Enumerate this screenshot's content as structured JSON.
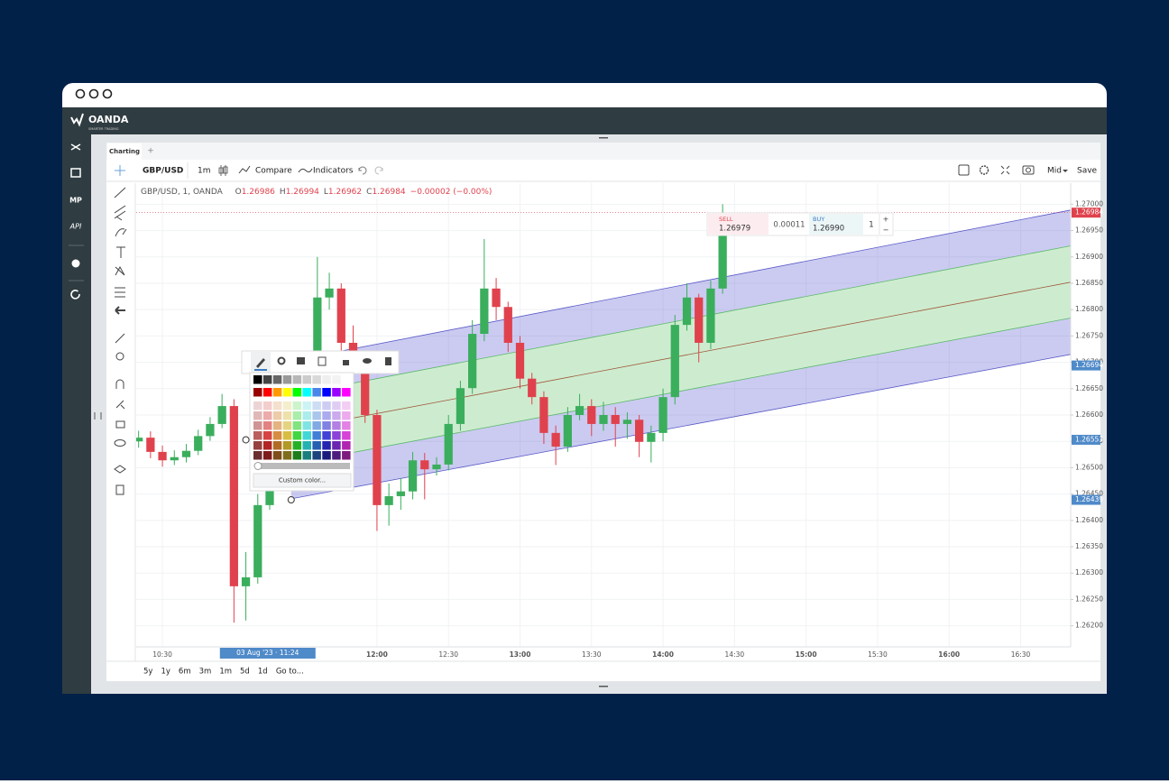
{
  "window": {
    "logo": "OANDA",
    "tagline": "SMARTER TRADING",
    "sidebar": [
      "MP",
      "API"
    ]
  },
  "tabs": [
    "Charting",
    "+"
  ],
  "toolbar": {
    "symbol": "GBP/USD",
    "interval": "1m",
    "compare": "Compare",
    "indicators": "Indicators",
    "price_type": "Mid",
    "save": "Save"
  },
  "legend": {
    "title": "GBP/USD, 1, OANDA",
    "open_label": "O",
    "open": "1.26986",
    "high_label": "H",
    "high": "1.26994",
    "low_label": "L",
    "low": "1.26962",
    "close_label": "C",
    "close": "1.26984",
    "change": "−0.00002 (−0.00%)"
  },
  "trade": {
    "sell_label": "SELL",
    "sell": "1.26979",
    "spread": "0.00011",
    "buy_label": "BUY",
    "buy": "1.26990",
    "quantity": "1",
    "plus": "+",
    "minus": "−"
  },
  "color_picker": {
    "custom": "Custom color..."
  },
  "ranges": [
    "5y",
    "1y",
    "6m",
    "3m",
    "1m",
    "5d",
    "1d",
    "Go to..."
  ],
  "chart_data": {
    "type": "candlestick",
    "x": [
      620,
      625,
      630,
      635,
      640,
      645,
      650,
      655,
      660,
      665,
      670,
      675,
      680,
      685,
      690,
      695,
      700,
      705,
      710,
      715,
      720,
      725,
      730,
      735,
      740,
      745,
      750,
      755,
      760,
      765,
      770,
      775,
      780,
      785,
      790,
      795,
      800,
      805,
      810,
      815,
      820,
      825,
      830,
      835,
      840,
      845,
      850,
      855,
      860,
      865
    ],
    "open": [
      1.2655,
      1.26557,
      1.2653,
      1.26514,
      1.2652,
      1.26532,
      1.2656,
      1.26583,
      1.26617,
      1.26275,
      1.26292,
      1.26429,
      1.26669,
      1.26617,
      1.26566,
      1.26497,
      1.26823,
      1.2684,
      1.26737,
      1.26703,
      1.266,
      1.26429,
      1.26446,
      1.26455,
      1.26514,
      1.26497,
      1.26506,
      1.26583,
      1.26651,
      1.26754,
      1.2684,
      1.26805,
      1.26737,
      1.26669,
      1.26634,
      1.26566,
      1.2654,
      1.266,
      1.26617,
      1.26583,
      1.266,
      1.26583,
      1.26591,
      1.26549,
      1.26566,
      1.26634,
      1.26771,
      1.26823,
      1.26737,
      1.2684
    ],
    "high": [
      1.2657,
      1.26569,
      1.26542,
      1.26533,
      1.26545,
      1.26572,
      1.26596,
      1.2664,
      1.2663,
      1.2634,
      1.2645,
      1.2669,
      1.267,
      1.2663,
      1.2658,
      1.269,
      1.2687,
      1.2685,
      1.2677,
      1.26715,
      1.2661,
      1.2647,
      1.2648,
      1.2653,
      1.26528,
      1.2652,
      1.266,
      1.26665,
      1.2678,
      1.26934,
      1.2686,
      1.26815,
      1.2675,
      1.2668,
      1.26645,
      1.2658,
      1.26615,
      1.2664,
      1.2663,
      1.26625,
      1.26615,
      1.26605,
      1.266,
      1.2658,
      1.2665,
      1.2679,
      1.2685,
      1.2683,
      1.26855,
      1.27
    ],
    "low": [
      1.26538,
      1.26518,
      1.26502,
      1.26505,
      1.2651,
      1.26524,
      1.26551,
      1.26575,
      1.26206,
      1.2621,
      1.2628,
      1.2642,
      1.26605,
      1.2655,
      1.2648,
      1.2649,
      1.268,
      1.2672,
      1.2669,
      1.26585,
      1.2638,
      1.2639,
      1.2642,
      1.2644,
      1.2644,
      1.26485,
      1.26495,
      1.2657,
      1.2664,
      1.2674,
      1.2678,
      1.2672,
      1.2665,
      1.2662,
      1.26545,
      1.26505,
      1.2653,
      1.2659,
      1.2656,
      1.2657,
      1.2654,
      1.26555,
      1.2652,
      1.2651,
      1.2655,
      1.2662,
      1.2676,
      1.267,
      1.26725,
      1.2683
    ],
    "close": [
      1.26557,
      1.2653,
      1.26514,
      1.2652,
      1.26532,
      1.2656,
      1.26583,
      1.26617,
      1.26275,
      1.26292,
      1.26429,
      1.26669,
      1.26617,
      1.26566,
      1.26497,
      1.26823,
      1.2684,
      1.26737,
      1.26703,
      1.266,
      1.26429,
      1.26446,
      1.26455,
      1.26514,
      1.26497,
      1.26506,
      1.26583,
      1.26651,
      1.26754,
      1.2684,
      1.26805,
      1.26737,
      1.26669,
      1.26634,
      1.26566,
      1.2654,
      1.266,
      1.26617,
      1.26583,
      1.266,
      1.26583,
      1.26591,
      1.26549,
      1.26566,
      1.26634,
      1.26771,
      1.26823,
      1.26737,
      1.2684,
      1.26984
    ],
    "up_color": "#3aae5c",
    "down_color": "#e0424d",
    "xlim": [
      619,
      1011
    ],
    "xticks": [
      {
        "value": 630,
        "label": "10:30"
      },
      {
        "value": 720,
        "label": "12:00"
      },
      {
        "value": 750,
        "label": "12:30"
      },
      {
        "value": 780,
        "label": "13:00"
      },
      {
        "value": 810,
        "label": "13:30"
      },
      {
        "value": 840,
        "label": "14:00"
      },
      {
        "value": 870,
        "label": "14:30"
      },
      {
        "value": 900,
        "label": "15:00"
      },
      {
        "value": 930,
        "label": "15:30"
      },
      {
        "value": 960,
        "label": "16:00"
      },
      {
        "value": 990,
        "label": "16:30"
      }
    ],
    "ylim": [
      1.2616,
      1.2704
    ],
    "yticks": [
      {
        "value": 1.27,
        "label": "1.27000"
      },
      {
        "value": 1.2695,
        "label": "1.26950"
      },
      {
        "value": 1.269,
        "label": "1.26900"
      },
      {
        "value": 1.2685,
        "label": "1.26850"
      },
      {
        "value": 1.268,
        "label": "1.26800"
      },
      {
        "value": 1.2675,
        "label": "1.26750"
      },
      {
        "value": 1.267,
        "label": "1.26700"
      },
      {
        "value": 1.2665,
        "label": "1.26650"
      },
      {
        "value": 1.266,
        "label": "1.26600"
      },
      {
        "value": 1.2655,
        "label": "1.26550"
      },
      {
        "value": 1.265,
        "label": "1.26500"
      },
      {
        "value": 1.2645,
        "label": "1.26450"
      },
      {
        "value": 1.264,
        "label": "1.26400"
      },
      {
        "value": 1.2635,
        "label": "1.26350"
      },
      {
        "value": 1.263,
        "label": "1.26300"
      },
      {
        "value": 1.2625,
        "label": "1.26250"
      },
      {
        "value": 1.262,
        "label": "1.26200"
      }
    ],
    "grid": true,
    "channel": {
      "x": [
        684,
        1011
      ],
      "upper": [
        1.26703,
        1.26989
      ],
      "inner_upper": [
        1.26638,
        1.26921
      ],
      "middle": [
        1.26572,
        1.26852
      ],
      "inner_lower": [
        1.26507,
        1.26784
      ],
      "lower": [
        1.26441,
        1.26715
      ],
      "handles": {
        "x": [
          665,
          684
        ],
        "y": [
          1.26553,
          1.26439
        ]
      }
    },
    "price_labels": [
      {
        "value": 1.26984,
        "label": "1.26984",
        "color": "#e0424d"
      },
      {
        "value": 1.26694,
        "label": "1.26694",
        "color": "#4f8ac9"
      },
      {
        "value": 1.26553,
        "label": "1.26553",
        "color": "#4f8ac9"
      },
      {
        "value": 1.26439,
        "label": "1.26439",
        "color": "#4f8ac9"
      }
    ],
    "crosshair": {
      "value": 684,
      "label": "03 Aug '23 · 11:24"
    }
  }
}
